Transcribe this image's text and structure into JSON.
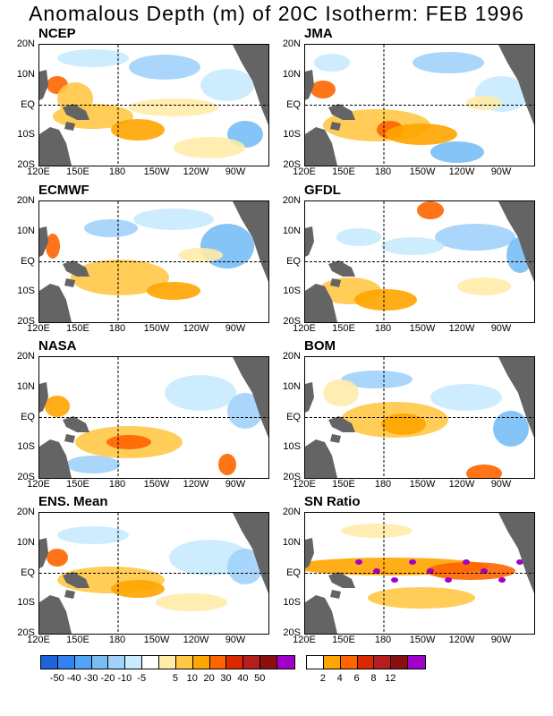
{
  "title": "Anomalous Depth (m) of 20C Isotherm: FEB 1996",
  "axes": {
    "lat_labels": [
      "20N",
      "10N",
      "EQ",
      "10S",
      "20S"
    ],
    "lon_labels": [
      "120E",
      "150E",
      "180",
      "150W",
      "120W",
      "90W"
    ]
  },
  "panels": [
    {
      "id": "ncep",
      "label": "NCEP"
    },
    {
      "id": "jma",
      "label": "JMA"
    },
    {
      "id": "ecmwf",
      "label": "ECMWF"
    },
    {
      "id": "gfdl",
      "label": "GFDL"
    },
    {
      "id": "nasa",
      "label": "NASA"
    },
    {
      "id": "bom",
      "label": "BOM"
    },
    {
      "id": "ens",
      "label": "ENS. Mean"
    },
    {
      "id": "sn",
      "label": "SN Ratio"
    }
  ],
  "colorbars": {
    "anomaly": {
      "colors": [
        "#1e64dc",
        "#3282f0",
        "#50a5f5",
        "#78bef5",
        "#a0d2fa",
        "#c8ebff",
        "#ffffff",
        "#ffebaa",
        "#ffc846",
        "#ffa500",
        "#ff6400",
        "#dc2800",
        "#b41e1e",
        "#8c0f0f",
        "#a000c8"
      ],
      "labels": [
        "-50",
        "-40",
        "-30",
        "-20",
        "-10",
        "-5",
        "5",
        "10",
        "20",
        "30",
        "40",
        "50"
      ]
    },
    "snr": {
      "colors": [
        "#ffffff",
        "#ffa500",
        "#ff6400",
        "#dc2800",
        "#b41e1e",
        "#8c0f0f",
        "#a000c8"
      ],
      "labels": [
        "2",
        "4",
        "6",
        "8",
        "12"
      ]
    }
  },
  "colors": {
    "land": "#646464",
    "warm_light": "#ffebaa",
    "warm_mid": "#ffc846",
    "warm_strong": "#ffa500",
    "warm_peak": "#ff6400",
    "cool_light": "#c8ebff",
    "cool_mid": "#a0d2fa",
    "cool_strong": "#78bef5",
    "sn_high": "#a000c8"
  }
}
